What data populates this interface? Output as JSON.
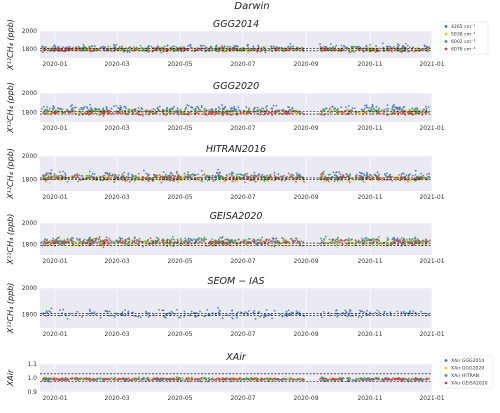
{
  "figure_title": "Darwin",
  "colors": {
    "background": "#eaeaf2",
    "grid": "#ffffff",
    "series": [
      "#3f6fc0",
      "#d4d42a",
      "#3a9a4a",
      "#d6414a"
    ],
    "reference_line": "#000000"
  },
  "x_ticks": [
    "2020-01",
    "2020-03",
    "2020-05",
    "2020-07",
    "2020-09",
    "2020-11",
    "2021-01"
  ],
  "legends": {
    "top": [
      "4265 cm⁻¹",
      "5938 cm⁻¹",
      "6002 cm⁻¹",
      "6076 cm⁻¹"
    ],
    "bottom": [
      "XAir GGG2014",
      "XAir GGG2020",
      "XAir HITRAN",
      "XAir GEISA2020"
    ]
  },
  "chart_data": [
    {
      "type": "scatter",
      "title": "GGG2014",
      "ylabel": "X¹²CH₄ (ppb)",
      "yticks": [
        "1800",
        "2000"
      ],
      "ylim": [
        1700,
        2000
      ],
      "dashed_lines": [
        1780,
        1808
      ],
      "series": [
        {
          "name": "4265 cm⁻¹",
          "center": 1815,
          "spread": 18
        },
        {
          "name": "5938 cm⁻¹",
          "center": 1795,
          "spread": 12
        },
        {
          "name": "6002 cm⁻¹",
          "center": 1800,
          "spread": 14
        },
        {
          "name": "6076 cm⁻¹",
          "center": 1790,
          "spread": 12
        }
      ]
    },
    {
      "type": "scatter",
      "title": "GGG2020",
      "ylabel": "X¹²CH₄ (ppb)",
      "yticks": [
        "1800",
        "2000"
      ],
      "ylim": [
        1700,
        2000
      ],
      "dashed_lines": [
        1782,
        1810
      ],
      "series": [
        {
          "name": "4265 cm⁻¹",
          "center": 1835,
          "spread": 20
        },
        {
          "name": "5938 cm⁻¹",
          "center": 1805,
          "spread": 12
        },
        {
          "name": "6002 cm⁻¹",
          "center": 1812,
          "spread": 14
        },
        {
          "name": "6076 cm⁻¹",
          "center": 1795,
          "spread": 12
        }
      ]
    },
    {
      "type": "scatter",
      "title": "HITRAN2016",
      "ylabel": "X¹²CH₄ (ppb)",
      "yticks": [
        "1800",
        "2000"
      ],
      "ylim": [
        1700,
        2000
      ],
      "dashed_lines": [
        1800,
        1812
      ],
      "series": [
        {
          "name": "4265 cm⁻¹",
          "center": 1830,
          "spread": 20
        },
        {
          "name": "5938 cm⁻¹",
          "center": 1808,
          "spread": 14
        },
        {
          "name": "6002 cm⁻¹",
          "center": 1815,
          "spread": 14
        },
        {
          "name": "6076 cm⁻¹",
          "center": 1812,
          "spread": 16
        }
      ]
    },
    {
      "type": "scatter",
      "title": "GEISA2020",
      "ylabel": "X¹²CH₄ (ppb)",
      "yticks": [
        "1800",
        "2000"
      ],
      "ylim": [
        1700,
        2000
      ],
      "dashed_lines": [
        1790,
        1812
      ],
      "series": [
        {
          "name": "4265 cm⁻¹",
          "center": 1825,
          "spread": 18
        },
        {
          "name": "5938 cm⁻¹",
          "center": 1810,
          "spread": 14
        },
        {
          "name": "6002 cm⁻¹",
          "center": 1835,
          "spread": 16
        },
        {
          "name": "6076 cm⁻¹",
          "center": 1822,
          "spread": 18
        }
      ]
    },
    {
      "type": "scatter",
      "title": "SEOM − IAS",
      "ylabel": "X¹²CH₄ (ppb)",
      "yticks": [
        "1800",
        "2000"
      ],
      "ylim": [
        1700,
        2000
      ],
      "dashed_lines": [
        1795,
        1808
      ],
      "series": [
        {
          "name": "4265 cm⁻¹",
          "center": 1808,
          "spread": 16
        }
      ]
    },
    {
      "type": "scatter",
      "title": "XAir",
      "ylabel": "XAir",
      "yticks": [
        "0.9",
        "1.0",
        "1.1"
      ],
      "ylim": [
        0.9,
        1.1
      ],
      "dashed_lines": [
        0.975,
        1.03
      ],
      "series": [
        {
          "name": "XAir GGG2014",
          "center": 0.988,
          "spread": 0.006
        },
        {
          "name": "XAir GGG2020",
          "center": 0.992,
          "spread": 0.004
        },
        {
          "name": "XAir HITRAN",
          "center": 0.995,
          "spread": 0.004
        },
        {
          "name": "XAir GEISA2020",
          "center": 0.991,
          "spread": 0.004
        }
      ]
    }
  ]
}
